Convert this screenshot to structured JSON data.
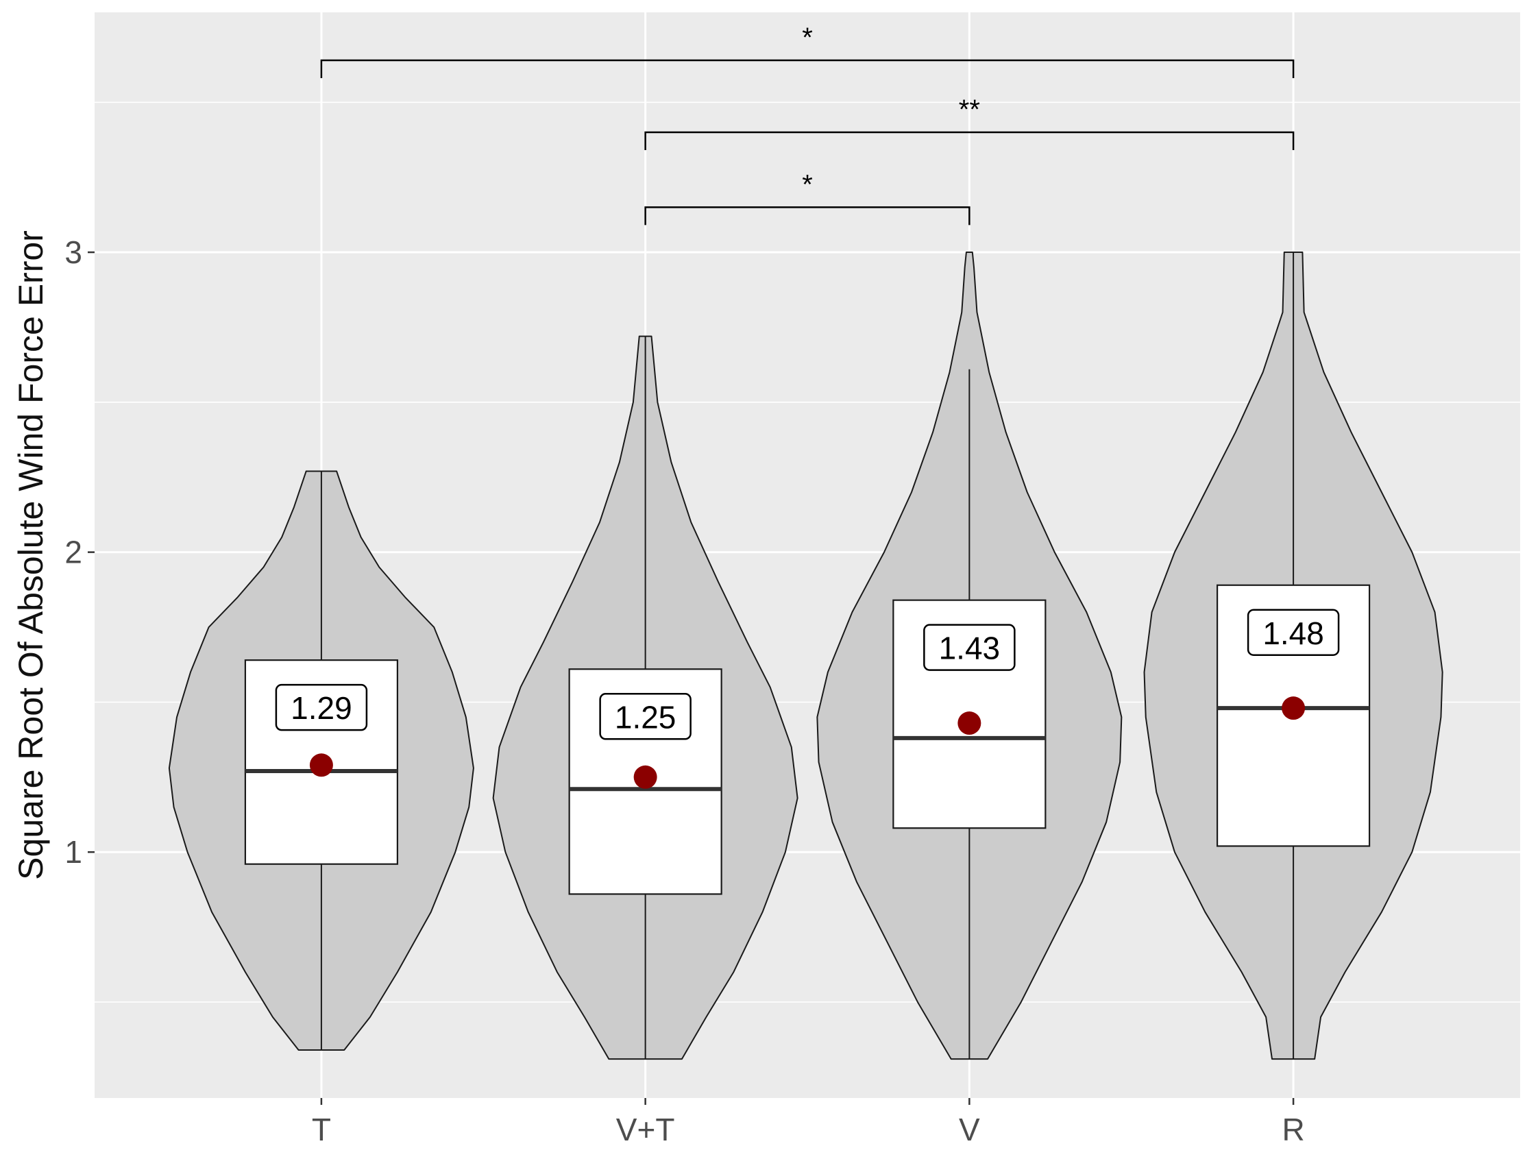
{
  "chart_data": {
    "type": "violin",
    "title": "",
    "xlabel": "",
    "ylabel": "Square Root Of Absolute Wind Force Error",
    "ylim": [
      0.18,
      3.8
    ],
    "yticks": [
      "1",
      "2",
      "3"
    ],
    "ytick_values": [
      1,
      2,
      3
    ],
    "minor_ytick_values": [
      0.5,
      1.5,
      2.5,
      3.5
    ],
    "grid": true,
    "legend": "none",
    "categories": [
      "T",
      "V+T",
      "V",
      "R"
    ],
    "groups": [
      {
        "name": "T",
        "violin_min": 0.34,
        "violin_max": 2.27,
        "violin_profile": [
          [
            0.34,
            0.15
          ],
          [
            0.45,
            0.32
          ],
          [
            0.6,
            0.5
          ],
          [
            0.8,
            0.72
          ],
          [
            1.0,
            0.88
          ],
          [
            1.15,
            0.97
          ],
          [
            1.28,
            1.0
          ],
          [
            1.45,
            0.95
          ],
          [
            1.6,
            0.86
          ],
          [
            1.75,
            0.74
          ],
          [
            1.85,
            0.55
          ],
          [
            1.95,
            0.38
          ],
          [
            2.05,
            0.26
          ],
          [
            2.15,
            0.18
          ],
          [
            2.27,
            0.1
          ]
        ],
        "whisker_low": 0.34,
        "whisker_high": 2.27,
        "q1": 0.96,
        "median": 1.27,
        "q3": 1.64,
        "mean": 1.29,
        "mean_label": "1.29"
      },
      {
        "name": "V+T",
        "violin_min": 0.31,
        "violin_max": 2.72,
        "violin_profile": [
          [
            0.31,
            0.24
          ],
          [
            0.45,
            0.4
          ],
          [
            0.6,
            0.58
          ],
          [
            0.8,
            0.77
          ],
          [
            1.0,
            0.92
          ],
          [
            1.18,
            1.0
          ],
          [
            1.35,
            0.96
          ],
          [
            1.55,
            0.82
          ],
          [
            1.7,
            0.67
          ],
          [
            1.9,
            0.48
          ],
          [
            2.1,
            0.3
          ],
          [
            2.3,
            0.17
          ],
          [
            2.5,
            0.08
          ],
          [
            2.72,
            0.04
          ]
        ],
        "whisker_low": 0.31,
        "whisker_high": 2.72,
        "q1": 0.86,
        "median": 1.21,
        "q3": 1.61,
        "mean": 1.25,
        "mean_label": "1.25"
      },
      {
        "name": "V",
        "violin_min": 0.31,
        "violin_max": 3.0,
        "violin_profile": [
          [
            0.31,
            0.12
          ],
          [
            0.5,
            0.34
          ],
          [
            0.7,
            0.54
          ],
          [
            0.9,
            0.74
          ],
          [
            1.1,
            0.9
          ],
          [
            1.3,
            0.99
          ],
          [
            1.45,
            1.0
          ],
          [
            1.6,
            0.93
          ],
          [
            1.8,
            0.77
          ],
          [
            2.0,
            0.56
          ],
          [
            2.2,
            0.38
          ],
          [
            2.4,
            0.24
          ],
          [
            2.6,
            0.13
          ],
          [
            2.8,
            0.05
          ],
          [
            2.95,
            0.03
          ],
          [
            3.0,
            0.02
          ]
        ],
        "whisker_low": 0.31,
        "whisker_high": 2.61,
        "q1": 1.08,
        "median": 1.38,
        "q3": 1.84,
        "mean": 1.43,
        "mean_label": "1.43"
      },
      {
        "name": "R",
        "violin_min": 0.31,
        "violin_max": 3.0,
        "violin_profile": [
          [
            0.31,
            0.14
          ],
          [
            0.45,
            0.18
          ],
          [
            0.6,
            0.34
          ],
          [
            0.8,
            0.58
          ],
          [
            1.0,
            0.78
          ],
          [
            1.2,
            0.9
          ],
          [
            1.45,
            0.97
          ],
          [
            1.6,
            0.98
          ],
          [
            1.8,
            0.93
          ],
          [
            2.0,
            0.78
          ],
          [
            2.2,
            0.58
          ],
          [
            2.4,
            0.38
          ],
          [
            2.6,
            0.2
          ],
          [
            2.8,
            0.07
          ],
          [
            3.0,
            0.06
          ]
        ],
        "whisker_low": 0.31,
        "whisker_high": 3.0,
        "q1": 1.02,
        "median": 1.48,
        "q3": 1.89,
        "mean": 1.48,
        "mean_label": "1.48"
      }
    ],
    "significance": [
      {
        "from": "T",
        "to": "R",
        "y": 3.64,
        "label": "*"
      },
      {
        "from": "V+T",
        "to": "R",
        "y": 3.4,
        "label": "**"
      },
      {
        "from": "V+T",
        "to": "V",
        "y": 3.15,
        "label": "*"
      }
    ],
    "colors": {
      "panel": "#ebebeb",
      "grid": "#ffffff",
      "violin_fill": "#cccccc",
      "box_fill": "#ffffff",
      "line": "#1a1a1a",
      "median": "#333333",
      "mean_point": "#8b0000"
    }
  }
}
